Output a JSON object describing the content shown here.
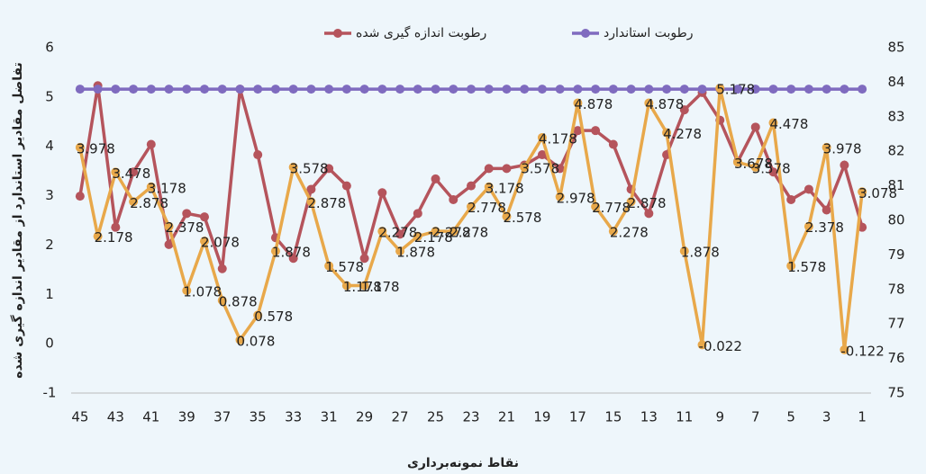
{
  "chart_data": {
    "type": "line",
    "legend_position": "top",
    "y_label": "تفاضل مقادیر استاندارد از مقادیر اندازه گیری شده",
    "x_label": "نقاط نمونه‌برداری",
    "categories": [
      "45",
      null,
      "43",
      null,
      "41",
      null,
      "39",
      null,
      "37",
      null,
      "35",
      null,
      "33",
      null,
      "31",
      null,
      "29",
      null,
      "27",
      null,
      "25",
      null,
      "23",
      null,
      "21",
      null,
      "19",
      null,
      "17",
      null,
      "15",
      null,
      "13",
      null,
      "11",
      null,
      "9",
      null,
      "7",
      null,
      "5",
      null,
      "3",
      null,
      "1"
    ],
    "ylim": [
      -1,
      6
    ],
    "yticks": [
      -1,
      0,
      1,
      2,
      3,
      4,
      5,
      6
    ],
    "y2lim": [
      75,
      85
    ],
    "y2ticks": [
      75,
      76,
      77,
      78,
      79,
      80,
      81,
      82,
      83,
      84,
      85
    ],
    "series": [
      {
        "name": "رطوبت اندازه گیری شده",
        "color": "#b5545c",
        "axis": "y2",
        "values": [
          80.7,
          83.9,
          79.8,
          81.4,
          82.2,
          79.3,
          80.2,
          80.1,
          78.6,
          83.8,
          81.9,
          79.5,
          78.9,
          80.9,
          81.5,
          81.0,
          78.9,
          80.8,
          79.6,
          80.2,
          81.2,
          80.6,
          81.0,
          81.5,
          81.5,
          81.6,
          81.9,
          81.5,
          82.6,
          82.6,
          82.2,
          80.9,
          80.2,
          81.9,
          83.2,
          83.7,
          82.9,
          81.7,
          82.7,
          81.4,
          80.6,
          80.9,
          80.3,
          81.6,
          79.8
        ]
      },
      {
        "name": "رطوبت استاندارد",
        "color": "#7f6bbf",
        "axis": "y2",
        "values": [
          83.8,
          83.8,
          83.8,
          83.8,
          83.8,
          83.8,
          83.8,
          83.8,
          83.8,
          83.8,
          83.8,
          83.8,
          83.8,
          83.8,
          83.8,
          83.8,
          83.8,
          83.8,
          83.8,
          83.8,
          83.8,
          83.8,
          83.8,
          83.8,
          83.8,
          83.8,
          83.8,
          83.8,
          83.8,
          83.8,
          83.8,
          83.8,
          83.8,
          83.8,
          83.8,
          83.8,
          83.8,
          83.8,
          83.8,
          83.8,
          83.8,
          83.8,
          83.8,
          83.8,
          83.8
        ]
      },
      {
        "color": "#e8a84a",
        "show_labels": true,
        "values": [
          3.978,
          2.178,
          3.478,
          2.878,
          3.178,
          2.378,
          1.078,
          2.078,
          0.878,
          0.078,
          0.578,
          1.878,
          3.578,
          2.878,
          1.578,
          1.178,
          1.178,
          2.278,
          1.878,
          2.178,
          2.278,
          2.278,
          2.778,
          3.178,
          2.578,
          3.578,
          4.178,
          2.978,
          4.878,
          2.778,
          2.278,
          2.878,
          4.878,
          4.278,
          1.878,
          -0.022,
          5.178,
          3.678,
          3.578,
          4.478,
          1.578,
          2.378,
          3.978,
          -0.122,
          3.078
        ]
      }
    ]
  }
}
